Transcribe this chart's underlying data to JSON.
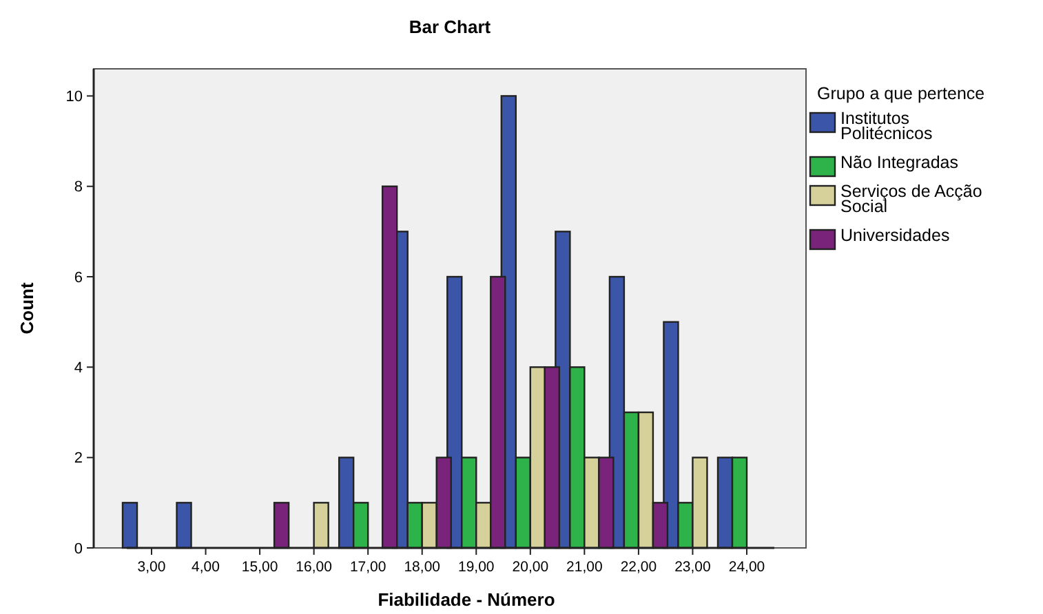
{
  "chart_data": {
    "type": "bar",
    "title": "Bar Chart",
    "xlabel": "Fiabilidade - Número",
    "ylabel": "Count",
    "legend_title": "Grupo a que pertence",
    "legend": "right",
    "grid": false,
    "categories": [
      "3,00",
      "4,00",
      "15,00",
      "16,00",
      "17,00",
      "18,00",
      "19,00",
      "20,00",
      "21,00",
      "22,00",
      "23,00",
      "24,00"
    ],
    "series": [
      {
        "name": "Institutos Politécnicos",
        "color": "#3b55a8",
        "values": [
          1,
          1,
          null,
          null,
          2,
          7,
          6,
          10,
          7,
          6,
          5,
          2
        ]
      },
      {
        "name": "Não Integradas",
        "color": "#2db34a",
        "values": [
          null,
          null,
          null,
          null,
          1,
          1,
          2,
          2,
          4,
          3,
          1,
          2
        ]
      },
      {
        "name": "Serviços de Acção Social",
        "color": "#d6d19a",
        "values": [
          null,
          null,
          null,
          1,
          null,
          1,
          1,
          4,
          2,
          3,
          2,
          null
        ]
      },
      {
        "name": "Universidades",
        "color": "#7a237a",
        "values": [
          null,
          null,
          1,
          null,
          8,
          2,
          6,
          4,
          2,
          1,
          null,
          null
        ]
      }
    ],
    "ylim": [
      0,
      10.6
    ],
    "yticks": [
      0,
      2,
      4,
      6,
      8,
      10
    ]
  }
}
